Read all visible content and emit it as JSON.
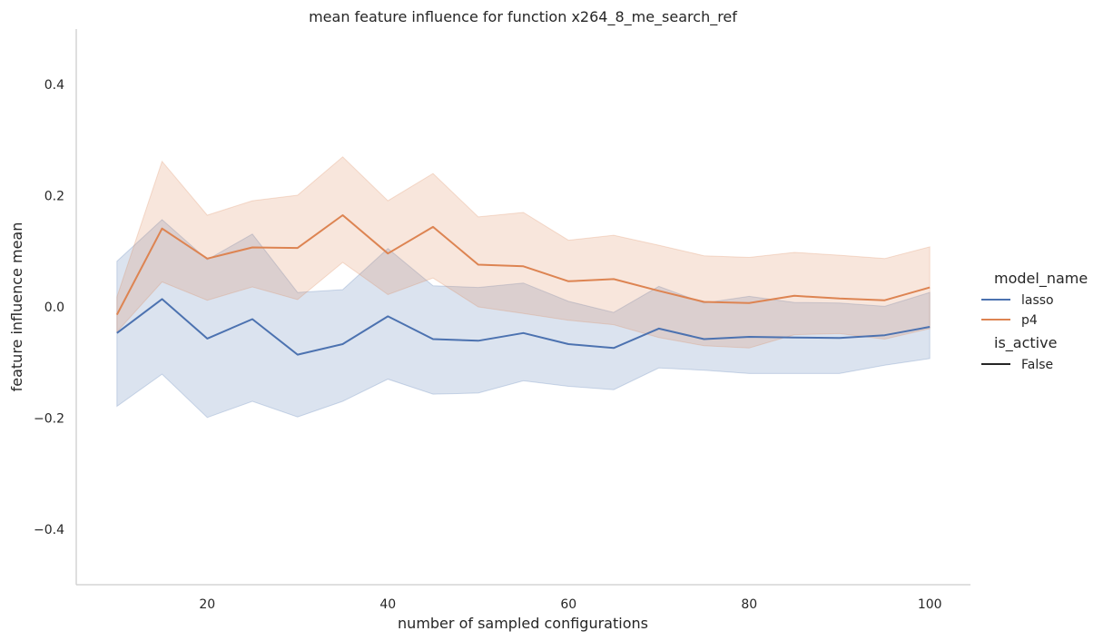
{
  "chart_data": {
    "type": "line",
    "title": "mean feature influence for function x264_8_me_search_ref",
    "xlabel": "number of sampled configurations",
    "ylabel": "feature influence mean",
    "xlim": [
      5.5,
      104.5
    ],
    "ylim": [
      -0.5,
      0.5
    ],
    "xticks": [
      20,
      40,
      60,
      80,
      100
    ],
    "xtick_labels": [
      "20",
      "40",
      "60",
      "80",
      "100"
    ],
    "yticks": [
      -0.4,
      -0.2,
      0.0,
      0.2,
      0.4
    ],
    "ytick_labels": [
      "−0.4",
      "−0.2",
      "0.0",
      "0.2",
      "0.4"
    ],
    "grid": false,
    "legend_placement": "right",
    "legend": {
      "title": "model_name",
      "entries": [
        "lasso",
        "p4"
      ],
      "style_title": "is_active",
      "style_entries": [
        "False"
      ]
    },
    "x": [
      10,
      15,
      20,
      25,
      30,
      35,
      40,
      45,
      50,
      55,
      60,
      65,
      70,
      75,
      80,
      85,
      90,
      95,
      100
    ],
    "series": [
      {
        "name": "lasso",
        "color": "#4c72b0",
        "values": [
          -0.047,
          0.014,
          -0.057,
          -0.022,
          -0.086,
          -0.067,
          -0.017,
          -0.058,
          -0.061,
          -0.047,
          -0.067,
          -0.074,
          -0.039,
          -0.058,
          -0.054,
          -0.055,
          -0.056,
          -0.051,
          -0.036
        ],
        "ci_lower": [
          -0.179,
          -0.121,
          -0.199,
          -0.17,
          -0.198,
          -0.17,
          -0.13,
          -0.157,
          -0.155,
          -0.133,
          -0.143,
          -0.149,
          -0.11,
          -0.114,
          -0.12,
          -0.12,
          -0.12,
          -0.105,
          -0.093
        ],
        "ci_upper": [
          0.082,
          0.157,
          0.085,
          0.131,
          0.026,
          0.031,
          0.105,
          0.038,
          0.035,
          0.043,
          0.01,
          -0.01,
          0.037,
          0.007,
          0.019,
          0.008,
          0.007,
          0.001,
          0.026
        ]
      },
      {
        "name": "p4",
        "color": "#dd8452",
        "values": [
          -0.014,
          0.141,
          0.087,
          0.107,
          0.106,
          0.165,
          0.096,
          0.144,
          0.076,
          0.073,
          0.046,
          0.05,
          0.029,
          0.009,
          0.007,
          0.02,
          0.015,
          0.012,
          0.035
        ],
        "ci_lower": [
          -0.045,
          0.045,
          0.012,
          0.036,
          0.013,
          0.08,
          0.022,
          0.052,
          0.0,
          -0.012,
          -0.024,
          -0.032,
          -0.055,
          -0.07,
          -0.074,
          -0.05,
          -0.048,
          -0.058,
          -0.039
        ],
        "ci_upper": [
          0.018,
          0.262,
          0.165,
          0.191,
          0.201,
          0.27,
          0.191,
          0.24,
          0.162,
          0.17,
          0.12,
          0.129,
          0.111,
          0.092,
          0.089,
          0.098,
          0.093,
          0.087,
          0.108
        ]
      }
    ]
  }
}
